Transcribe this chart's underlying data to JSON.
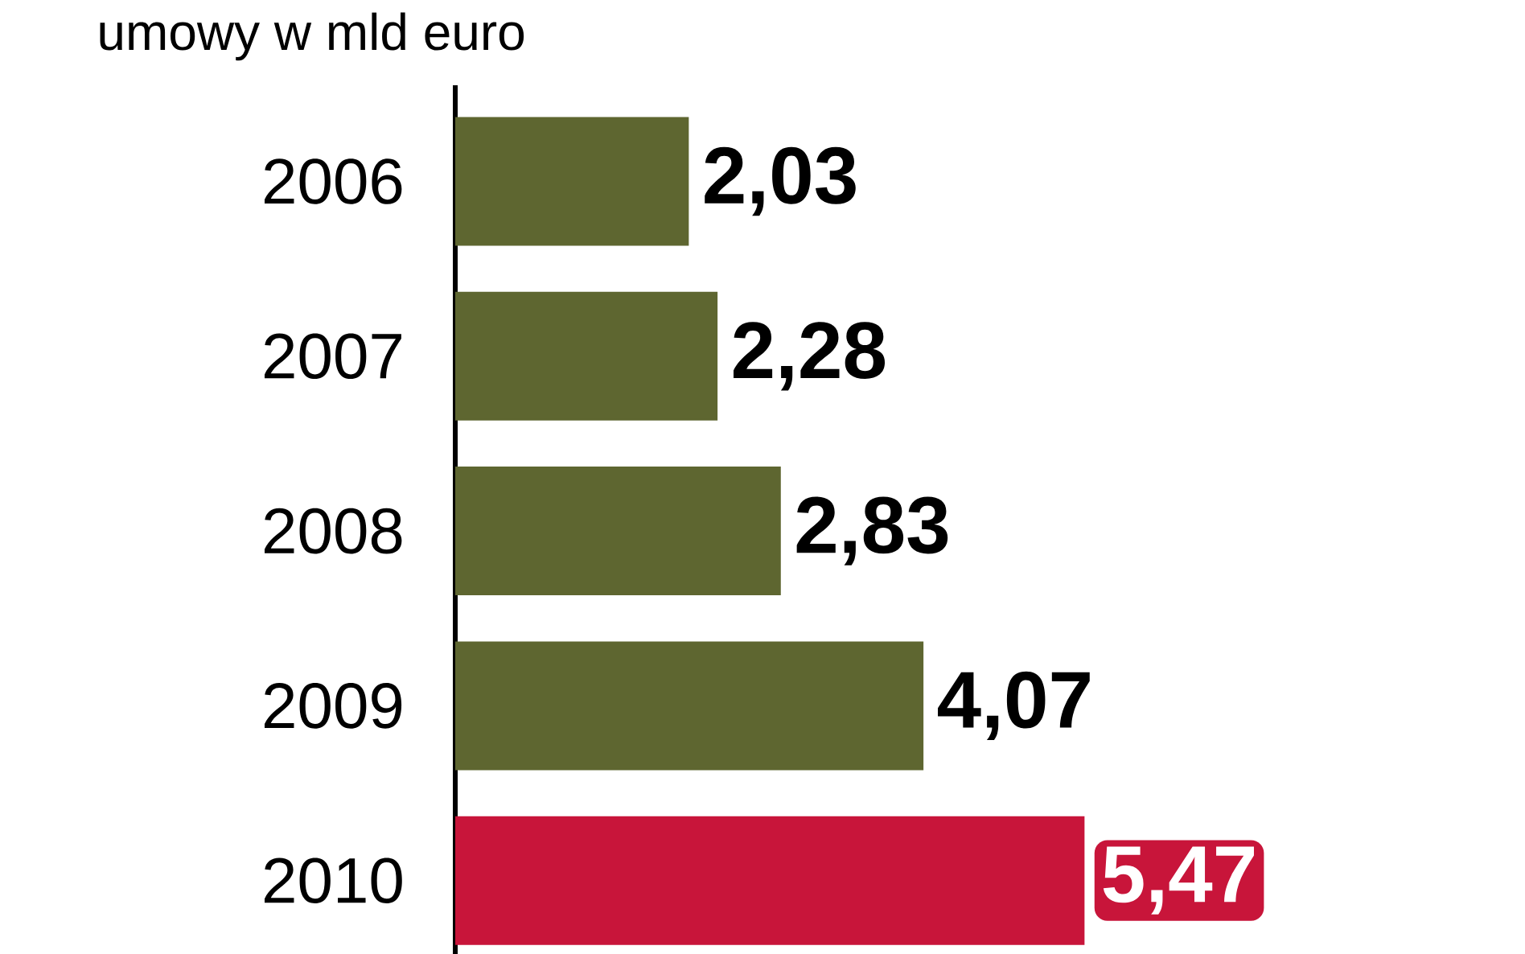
{
  "chart_data": {
    "type": "bar",
    "orientation": "horizontal",
    "title": "umowy w mld euro",
    "categories": [
      "2006",
      "2007",
      "2008",
      "2009",
      "2010"
    ],
    "values": [
      2.03,
      2.28,
      2.83,
      4.07,
      5.47
    ],
    "value_labels": [
      "2,03",
      "2,28",
      "2,83",
      "4,07",
      "5,47"
    ],
    "colors": [
      "#5e6630",
      "#5e6630",
      "#5e6630",
      "#5e6630",
      "#c8153a"
    ],
    "tick_labels": "y"
  }
}
